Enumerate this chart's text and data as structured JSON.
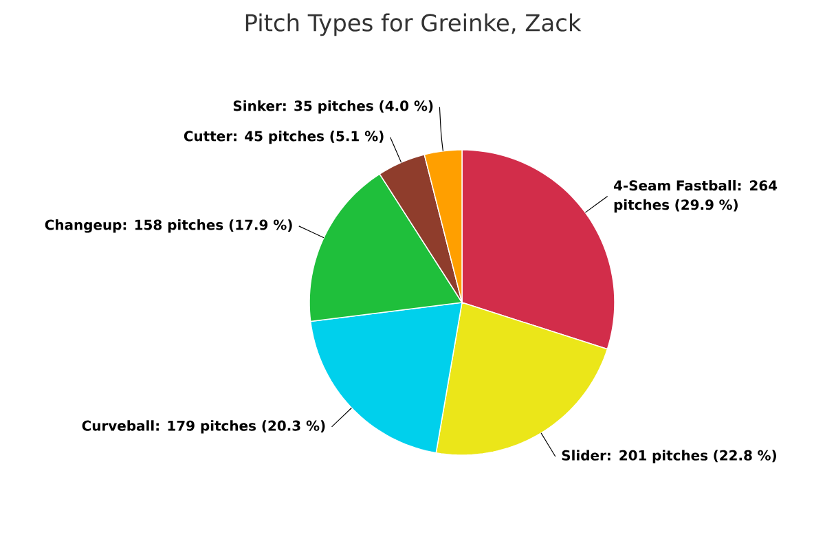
{
  "chart_data": {
    "type": "pie",
    "title": "Pitch Types for Greinke, Zack",
    "categories": [
      "4-Seam Fastball: 264 pitches (29.9 %)",
      "Slider: 201 pitches (22.8 %)",
      "Curveball: 179 pitches (20.3 %)",
      "Changeup: 158 pitches (17.9 %)",
      "Cutter: 45 pitches (5.1 %)",
      "Sinker: 35 pitches (4.0 %)"
    ],
    "values": [
      264,
      201,
      179,
      158,
      45,
      35
    ],
    "colors": [
      "#d22d4a",
      "#ebe619",
      "#00d0ec",
      "#1fbf3b",
      "#8f3d2c",
      "#ff9f00"
    ]
  }
}
